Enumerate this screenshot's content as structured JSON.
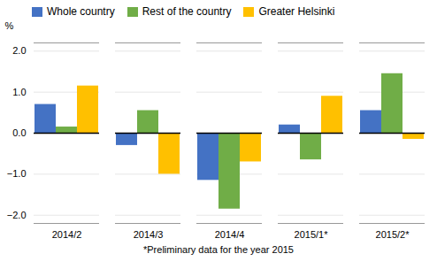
{
  "chart_data": {
    "type": "bar",
    "categories": [
      "2014/2",
      "2014/3",
      "2014/4",
      "2015/1*",
      "2015/2*"
    ],
    "series": [
      {
        "name": "Whole country",
        "color": "#4472C4",
        "values": [
          0.7,
          -0.3,
          -1.15,
          0.2,
          0.55
        ]
      },
      {
        "name": "Rest of the country",
        "color": "#70AD47",
        "values": [
          0.15,
          0.55,
          -1.85,
          -0.65,
          1.45
        ]
      },
      {
        "name": "Greater Helsinki",
        "color": "#FFC000",
        "values": [
          1.15,
          -1.0,
          -0.7,
          0.9,
          -0.15
        ]
      }
    ],
    "ylabel": "%",
    "ylim": [
      -2.2,
      2.2
    ],
    "yticks": [
      -2,
      -1,
      0,
      1,
      2
    ],
    "grid": true,
    "legend": "upper left",
    "annotations": [
      "*Preliminary data for the year 2015"
    ]
  }
}
